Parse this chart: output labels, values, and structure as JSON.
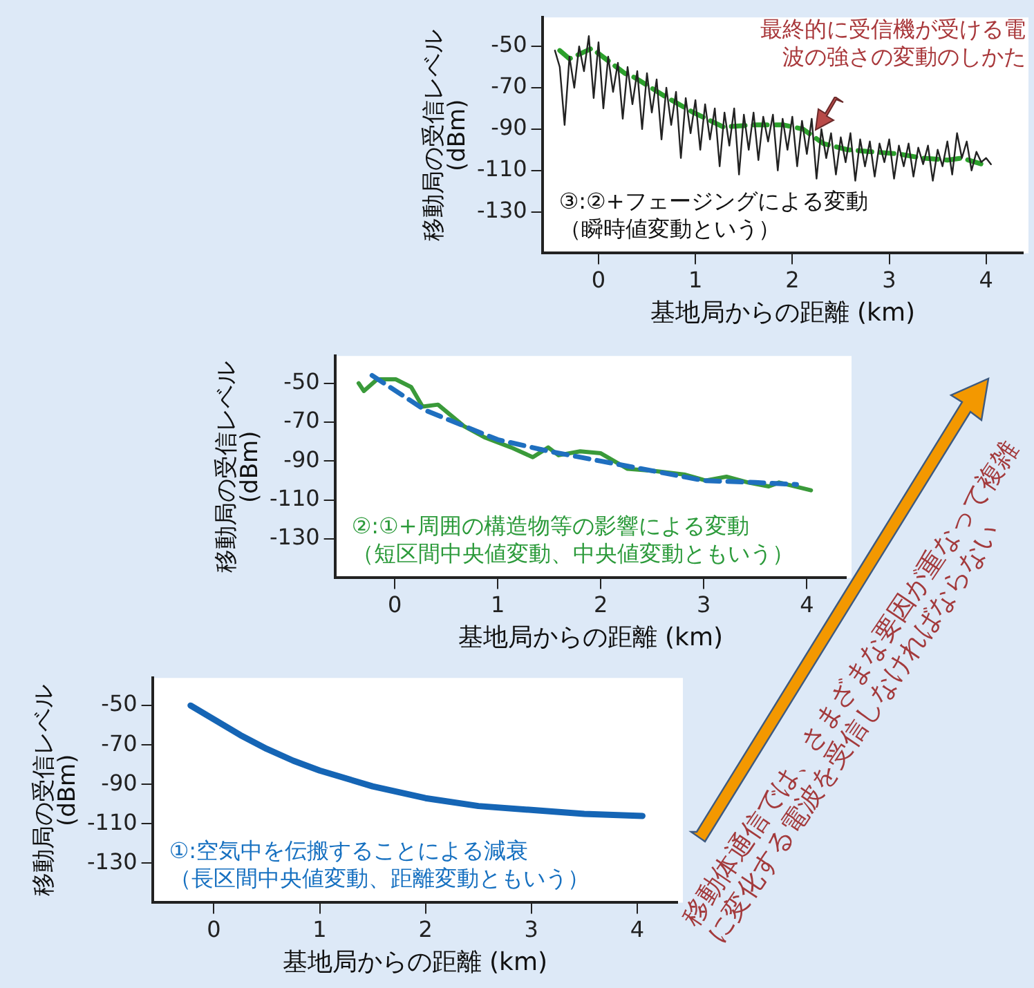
{
  "chart_data": [
    {
      "type": "line",
      "xlabel": "基地局からの距離 (km)",
      "ylabel": "移動局の受信レベル (dBm)",
      "xlim": [
        -0.58,
        4.38
      ],
      "ylim": [
        -150,
        -36
      ],
      "xticks": [
        0,
        1,
        2,
        3,
        4
      ],
      "yticks": [
        -50,
        -70,
        -90,
        -110,
        -130
      ],
      "grid": false,
      "marker": "none",
      "annotations": [
        "最終的に受信機が受ける電波の強さの変動のしかた",
        "③:②+フェージングによる変動（瞬時値変動という）"
      ],
      "series": [
        {
          "color": "#222222",
          "line_style": "solid",
          "x": [
            -0.45,
            -0.4,
            -0.35,
            -0.3,
            -0.25,
            -0.2,
            -0.15,
            -0.1,
            -0.05,
            0,
            0.05,
            0.1,
            0.15,
            0.2,
            0.25,
            0.3,
            0.35,
            0.4,
            0.45,
            0.5,
            0.55,
            0.6,
            0.65,
            0.7,
            0.75,
            0.8,
            0.85,
            0.9,
            0.95,
            1.0,
            1.05,
            1.1,
            1.15,
            1.2,
            1.25,
            1.3,
            1.35,
            1.4,
            1.45,
            1.5,
            1.55,
            1.6,
            1.65,
            1.7,
            1.75,
            1.8,
            1.85,
            1.9,
            1.95,
            2.0,
            2.05,
            2.1,
            2.15,
            2.2,
            2.25,
            2.3,
            2.35,
            2.4,
            2.45,
            2.5,
            2.55,
            2.6,
            2.65,
            2.7,
            2.75,
            2.8,
            2.85,
            2.9,
            2.95,
            3.0,
            3.05,
            3.1,
            3.15,
            3.2,
            3.25,
            3.3,
            3.35,
            3.4,
            3.45,
            3.5,
            3.55,
            3.6,
            3.65,
            3.7,
            3.75,
            3.8,
            3.85,
            3.9,
            3.95,
            4.0,
            4.05
          ],
          "values": [
            -52,
            -60,
            -88,
            -55,
            -70,
            -50,
            -62,
            -45,
            -75,
            -48,
            -80,
            -55,
            -72,
            -58,
            -85,
            -60,
            -78,
            -62,
            -90,
            -63,
            -82,
            -66,
            -95,
            -70,
            -88,
            -72,
            -104,
            -75,
            -92,
            -76,
            -100,
            -78,
            -95,
            -80,
            -108,
            -82,
            -98,
            -80,
            -112,
            -83,
            -100,
            -82,
            -105,
            -84,
            -96,
            -83,
            -110,
            -85,
            -100,
            -84,
            -108,
            -86,
            -102,
            -85,
            -114,
            -90,
            -104,
            -92,
            -112,
            -94,
            -106,
            -92,
            -115,
            -95,
            -108,
            -96,
            -113,
            -97,
            -106,
            -95,
            -114,
            -98,
            -108,
            -97,
            -113,
            -99,
            -107,
            -98,
            -115,
            -100,
            -108,
            -96,
            -112,
            -92,
            -104,
            -96,
            -110,
            -101,
            -106,
            -104,
            -107
          ]
        },
        {
          "color": "#2ca02c",
          "line_style": "dashed",
          "x": [
            -0.4,
            -0.3,
            -0.07,
            0.27,
            0.37,
            0.68,
            0.98,
            1.29,
            1.6,
            1.91,
            2.11,
            2.32,
            2.57,
            2.83,
            3.09,
            3.34,
            3.6,
            3.75,
            3.96
          ],
          "values": [
            -52,
            -56,
            -51,
            -63,
            -65,
            -74,
            -82,
            -89,
            -88,
            -88,
            -90,
            -97,
            -100,
            -101,
            -102,
            -104,
            -105,
            -104,
            -107
          ]
        }
      ]
    },
    {
      "type": "line",
      "xlabel": "基地局からの距離 (km)",
      "ylabel": "移動局の受信レベル (dBm)",
      "xlim": [
        -0.58,
        4.38
      ],
      "ylim": [
        -150,
        -36
      ],
      "xticks": [
        0,
        1,
        2,
        3,
        4
      ],
      "yticks": [
        -50,
        -70,
        -90,
        -110,
        -130
      ],
      "grid": false,
      "marker": "none",
      "annotations": [
        "②:①+周囲の構造物等の影響による変動（短区間中央値変動、中央値変動ともいう）"
      ],
      "series": [
        {
          "color": "#1f6fbf",
          "line_style": "dashed",
          "x": [
            -0.22,
            0.3,
            1,
            1.5,
            2,
            2.5,
            3,
            3.5,
            3.9
          ],
          "values": [
            -46,
            -64,
            -79,
            -85,
            -90,
            -95,
            -100,
            -101,
            -102
          ]
        },
        {
          "color": "#3a9a3a",
          "line_style": "solid",
          "x": [
            -0.35,
            -0.3,
            -0.17,
            0.01,
            0.16,
            0.27,
            0.42,
            0.67,
            0.88,
            1.13,
            1.34,
            1.49,
            1.59,
            1.8,
            2.0,
            2.26,
            2.51,
            2.82,
            3.02,
            3.22,
            3.43,
            3.63,
            3.73,
            4.04
          ],
          "values": [
            -50,
            -54,
            -48,
            -48,
            -52,
            -62,
            -61,
            -72,
            -78,
            -83,
            -88,
            -83,
            -87,
            -85,
            -86,
            -94,
            -95,
            -97,
            -100,
            -98,
            -101,
            -103,
            -101,
            -105
          ]
        }
      ]
    },
    {
      "type": "line",
      "xlabel": "基地局からの距離 (km)",
      "ylabel": "移動局の受信レベル (dBm)",
      "xlim": [
        -0.58,
        4.38
      ],
      "ylim": [
        -150,
        -36
      ],
      "xticks": [
        0,
        1,
        2,
        3,
        4
      ],
      "yticks": [
        -50,
        -70,
        -90,
        -110,
        -130
      ],
      "grid": false,
      "marker": "none",
      "annotations": [
        "①:空気中を伝搬することによる減衰（長区間中央値変動、距離変動ともいう）"
      ],
      "series": [
        {
          "color": "#1565b5",
          "line_style": "solid",
          "x": [
            -0.22,
            0,
            0.25,
            0.5,
            0.75,
            1,
            1.5,
            2,
            2.5,
            3,
            3.5,
            4.05
          ],
          "values": [
            -50,
            -57,
            -65,
            -72,
            -78,
            -83,
            -91,
            -97,
            -101,
            -103,
            -105,
            -106
          ]
        }
      ]
    },
    {
      "type": "other",
      "annotations": [
        "移動体通信では、さまざまな要因が重なって複雑に変化する電波を受信しなければならない"
      ]
    }
  ]
}
